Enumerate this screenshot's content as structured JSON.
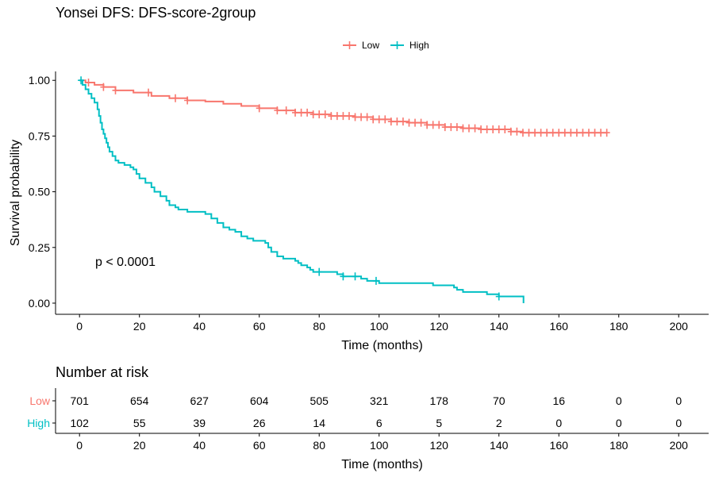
{
  "title": "Yonsei DFS: DFS-score-2group",
  "chart_data": {
    "type": "line",
    "subtype": "kaplan-meier",
    "xlabel": "Time (months)",
    "ylabel": "Survival probability",
    "xlim": [
      -8,
      210
    ],
    "ylim": [
      -0.05,
      1.04
    ],
    "xticks": [
      0,
      20,
      40,
      60,
      80,
      100,
      120,
      140,
      160,
      180,
      200
    ],
    "yticks": [
      0.0,
      0.25,
      0.5,
      0.75,
      1.0
    ],
    "ytick_labels": [
      "0.00",
      "0.25",
      "0.50",
      "0.75",
      "1.00"
    ],
    "legend": {
      "placement": "top",
      "items": [
        "Low",
        "High"
      ]
    },
    "annotation": "p < 0.0001",
    "grid": false,
    "series": [
      {
        "name": "Low",
        "color": "#F8766D",
        "steps": [
          [
            0,
            1.0
          ],
          [
            2,
            0.99
          ],
          [
            5,
            0.98
          ],
          [
            8,
            0.97
          ],
          [
            12,
            0.955
          ],
          [
            18,
            0.945
          ],
          [
            24,
            0.93
          ],
          [
            30,
            0.92
          ],
          [
            36,
            0.91
          ],
          [
            42,
            0.905
          ],
          [
            48,
            0.895
          ],
          [
            54,
            0.885
          ],
          [
            60,
            0.875
          ],
          [
            66,
            0.865
          ],
          [
            72,
            0.855
          ],
          [
            78,
            0.847
          ],
          [
            84,
            0.84
          ],
          [
            92,
            0.835
          ],
          [
            98,
            0.825
          ],
          [
            104,
            0.815
          ],
          [
            110,
            0.81
          ],
          [
            116,
            0.8
          ],
          [
            122,
            0.79
          ],
          [
            128,
            0.785
          ],
          [
            134,
            0.78
          ],
          [
            144,
            0.77
          ],
          [
            148,
            0.765
          ],
          [
            176,
            0.765
          ]
        ],
        "censor_times": [
          3,
          8,
          12,
          23,
          32,
          36,
          60,
          66,
          69,
          72,
          74,
          76,
          78,
          80,
          82,
          84,
          86,
          88,
          90,
          92,
          94,
          96,
          98,
          100,
          102,
          104,
          106,
          108,
          110,
          112,
          114,
          116,
          118,
          120,
          122,
          124,
          126,
          128,
          130,
          132,
          134,
          136,
          138,
          140,
          142,
          144,
          146,
          148,
          150,
          152,
          154,
          156,
          158,
          160,
          162,
          164,
          166,
          168,
          170,
          172,
          174,
          176
        ]
      },
      {
        "name": "High",
        "color": "#00BFC4",
        "steps": [
          [
            0,
            1.0
          ],
          [
            1,
            0.98
          ],
          [
            2,
            0.96
          ],
          [
            3,
            0.94
          ],
          [
            4,
            0.92
          ],
          [
            5,
            0.9
          ],
          [
            6,
            0.87
          ],
          [
            6.5,
            0.84
          ],
          [
            7,
            0.81
          ],
          [
            7.5,
            0.78
          ],
          [
            8,
            0.76
          ],
          [
            8.5,
            0.74
          ],
          [
            9,
            0.72
          ],
          [
            9.5,
            0.7
          ],
          [
            10,
            0.68
          ],
          [
            11,
            0.66
          ],
          [
            12,
            0.64
          ],
          [
            13,
            0.63
          ],
          [
            15,
            0.62
          ],
          [
            17,
            0.61
          ],
          [
            18,
            0.6
          ],
          [
            19,
            0.58
          ],
          [
            20,
            0.56
          ],
          [
            22,
            0.54
          ],
          [
            24,
            0.52
          ],
          [
            25,
            0.5
          ],
          [
            27,
            0.48
          ],
          [
            29,
            0.46
          ],
          [
            30,
            0.44
          ],
          [
            32,
            0.43
          ],
          [
            33,
            0.42
          ],
          [
            36,
            0.41
          ],
          [
            42,
            0.4
          ],
          [
            44,
            0.38
          ],
          [
            46,
            0.36
          ],
          [
            48,
            0.34
          ],
          [
            50,
            0.33
          ],
          [
            52,
            0.32
          ],
          [
            54,
            0.3
          ],
          [
            56,
            0.29
          ],
          [
            58,
            0.28
          ],
          [
            62,
            0.27
          ],
          [
            63,
            0.25
          ],
          [
            64,
            0.23
          ],
          [
            66,
            0.21
          ],
          [
            68,
            0.2
          ],
          [
            72,
            0.19
          ],
          [
            73,
            0.18
          ],
          [
            74,
            0.17
          ],
          [
            76,
            0.16
          ],
          [
            77,
            0.15
          ],
          [
            78,
            0.14
          ],
          [
            86,
            0.13
          ],
          [
            88,
            0.12
          ],
          [
            94,
            0.11
          ],
          [
            96,
            0.1
          ],
          [
            100,
            0.09
          ],
          [
            118,
            0.08
          ],
          [
            125,
            0.07
          ],
          [
            126,
            0.06
          ],
          [
            128,
            0.05
          ],
          [
            136,
            0.04
          ],
          [
            140,
            0.03
          ],
          [
            148,
            0.03
          ],
          [
            148.2,
            0.0
          ]
        ],
        "censor_times": [
          0.5,
          80,
          88,
          92,
          99,
          140
        ]
      }
    ]
  },
  "risk_table": {
    "title": "Number at risk",
    "times": [
      0,
      20,
      40,
      60,
      80,
      100,
      120,
      140,
      160,
      180,
      200
    ],
    "xlabel": "Time (months)",
    "rows": [
      {
        "label": "Low",
        "color": "#F8766D",
        "values": [
          "701",
          "654",
          "627",
          "604",
          "505",
          "321",
          "178",
          "70",
          "16",
          "0",
          "0"
        ]
      },
      {
        "label": "High",
        "color": "#00BFC4",
        "values": [
          "102",
          "55",
          "39",
          "26",
          "14",
          "6",
          "5",
          "2",
          "0",
          "0",
          "0"
        ]
      }
    ]
  }
}
